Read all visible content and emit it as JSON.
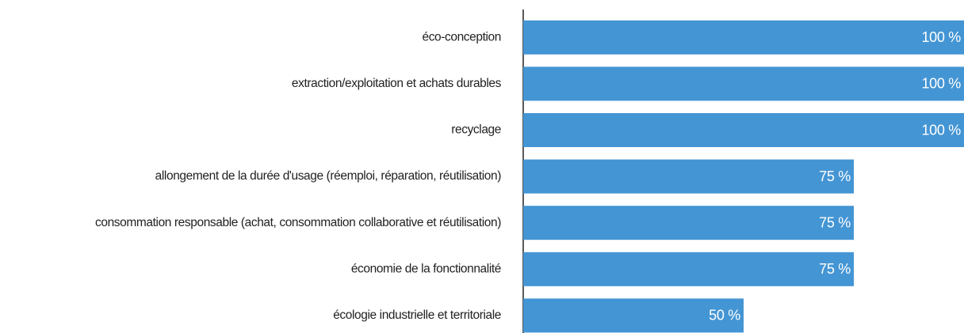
{
  "chart_data": {
    "type": "hbar",
    "categories": [
      "éco-conception",
      "extraction/exploitation et achats durables",
      "recyclage",
      "allongement de la durée d'usage (réemploi, réparation, réutilisation)",
      "consommation responsable (achat, consommation collaborative et réutilisation)",
      "économie de la fonctionnalité",
      "écologie industrielle et territoriale"
    ],
    "values": [
      100,
      100,
      100,
      75,
      75,
      75,
      50
    ],
    "value_labels": [
      "100 %",
      "100 %",
      "100 %",
      "75 %",
      "75 %",
      "75 %",
      "50 %"
    ],
    "color": "#4495d4",
    "xlim": [
      0,
      100
    ]
  }
}
